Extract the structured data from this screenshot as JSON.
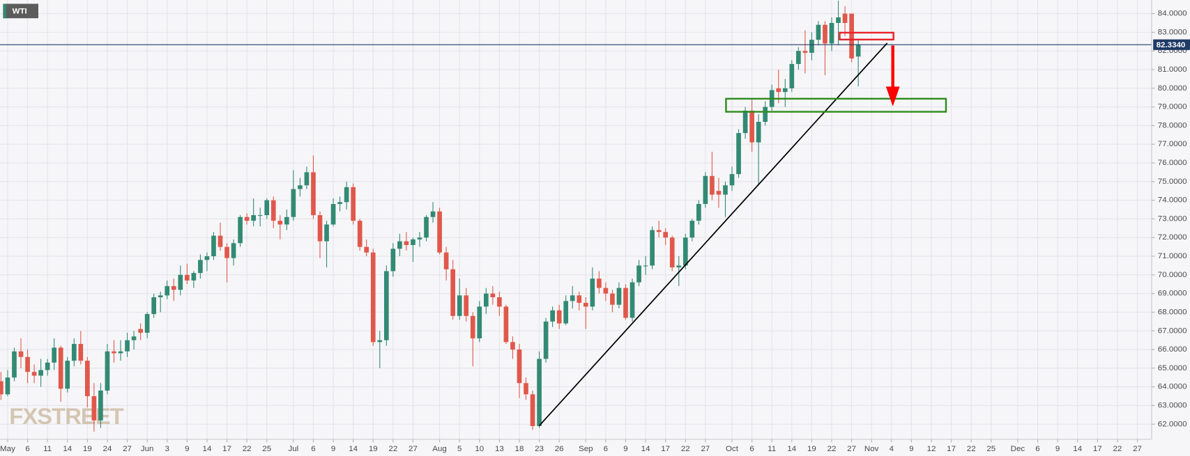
{
  "chart_data": {
    "type": "candlestick",
    "label": "WTI",
    "watermark": "FXSTREET",
    "colors": {
      "up": "#338a74",
      "down": "#e0584b"
    },
    "grid": true,
    "xlim": [
      -0.15,
      173.15
    ],
    "ylim": [
      61.19,
      84.73
    ],
    "yticks": [
      {
        "value": 62,
        "label": "62.0000"
      },
      {
        "value": 63,
        "label": "63.0000"
      },
      {
        "value": 64,
        "label": "64.0000"
      },
      {
        "value": 65,
        "label": "65.0000"
      },
      {
        "value": 66,
        "label": "66.0000"
      },
      {
        "value": 67,
        "label": "67.0000"
      },
      {
        "value": 68,
        "label": "68.0000"
      },
      {
        "value": 69,
        "label": "69.0000"
      },
      {
        "value": 70,
        "label": "70.0000"
      },
      {
        "value": 71,
        "label": "71.0000"
      },
      {
        "value": 72,
        "label": "72.0000"
      },
      {
        "value": 73,
        "label": "73.0000"
      },
      {
        "value": 74,
        "label": "74.0000"
      },
      {
        "value": 75,
        "label": "75.0000"
      },
      {
        "value": 76,
        "label": "76.0000"
      },
      {
        "value": 77,
        "label": "77.0000"
      },
      {
        "value": 78,
        "label": "78.0000"
      },
      {
        "value": 79,
        "label": "79.0000"
      },
      {
        "value": 80,
        "label": "80.0000"
      },
      {
        "value": 81,
        "label": "81.0000"
      },
      {
        "value": 82,
        "label": "82.0000"
      },
      {
        "value": 83,
        "label": "83.0000"
      },
      {
        "value": 84,
        "label": "84.0000"
      }
    ],
    "xticks": [
      {
        "value": 1,
        "label": "May"
      },
      {
        "value": 4,
        "label": "6"
      },
      {
        "value": 7,
        "label": "11"
      },
      {
        "value": 10,
        "label": "14"
      },
      {
        "value": 13,
        "label": "19"
      },
      {
        "value": 16,
        "label": "24"
      },
      {
        "value": 19,
        "label": "27"
      },
      {
        "value": 22,
        "label": "Jun"
      },
      {
        "value": 25,
        "label": "3"
      },
      {
        "value": 28,
        "label": "9"
      },
      {
        "value": 31,
        "label": "14"
      },
      {
        "value": 34,
        "label": "17"
      },
      {
        "value": 37,
        "label": "22"
      },
      {
        "value": 40,
        "label": "25"
      },
      {
        "value": 44,
        "label": "Jul"
      },
      {
        "value": 47,
        "label": "6"
      },
      {
        "value": 50,
        "label": "9"
      },
      {
        "value": 53,
        "label": "14"
      },
      {
        "value": 56,
        "label": "19"
      },
      {
        "value": 59,
        "label": "22"
      },
      {
        "value": 62,
        "label": "27"
      },
      {
        "value": 66,
        "label": "Aug"
      },
      {
        "value": 69,
        "label": "5"
      },
      {
        "value": 72,
        "label": "10"
      },
      {
        "value": 75,
        "label": "13"
      },
      {
        "value": 78,
        "label": "18"
      },
      {
        "value": 81,
        "label": "23"
      },
      {
        "value": 84,
        "label": "26"
      },
      {
        "value": 88,
        "label": "Sep"
      },
      {
        "value": 91,
        "label": "6"
      },
      {
        "value": 94,
        "label": "9"
      },
      {
        "value": 97,
        "label": "14"
      },
      {
        "value": 100,
        "label": "17"
      },
      {
        "value": 103,
        "label": "22"
      },
      {
        "value": 106,
        "label": "27"
      },
      {
        "value": 110,
        "label": "Oct"
      },
      {
        "value": 113,
        "label": "6"
      },
      {
        "value": 116,
        "label": "11"
      },
      {
        "value": 119,
        "label": "14"
      },
      {
        "value": 122,
        "label": "19"
      },
      {
        "value": 125,
        "label": "22"
      },
      {
        "value": 128,
        "label": "27"
      },
      {
        "value": 131,
        "label": "Nov"
      },
      {
        "value": 134,
        "label": "4"
      },
      {
        "value": 137,
        "label": "9"
      },
      {
        "value": 140,
        "label": "12"
      },
      {
        "value": 143,
        "label": "17"
      },
      {
        "value": 146,
        "label": "22"
      },
      {
        "value": 149,
        "label": "25"
      },
      {
        "value": 153,
        "label": "Dec"
      },
      {
        "value": 156,
        "label": "6"
      },
      {
        "value": 159,
        "label": "9"
      },
      {
        "value": 162,
        "label": "14"
      },
      {
        "value": 165,
        "label": "17"
      },
      {
        "value": 168,
        "label": "22"
      },
      {
        "value": 171,
        "label": "27"
      }
    ],
    "open": [
      64.3,
      63.6,
      64.5,
      65.9,
      65.6,
      64.8,
      64.6,
      64.9,
      65.3,
      66.1,
      63.9,
      65.4,
      66.3,
      65.4,
      63.5,
      62.2,
      63.8,
      65.9,
      65.8,
      65.9,
      66.5,
      67.1,
      66.9,
      67.9,
      68.8,
      68.9,
      69.4,
      69.2,
      70.0,
      69.7,
      70.1,
      70.8,
      71.0,
      72.1,
      71.5,
      70.9,
      71.7,
      73.1,
      72.9,
      73.2,
      73.2,
      74.0,
      72.9,
      72.7,
      73.1,
      74.6,
      74.8,
      75.5,
      73.2,
      71.8,
      72.7,
      73.8,
      73.9,
      74.7,
      72.9,
      71.5,
      71.2,
      66.4,
      66.5,
      70.2,
      71.4,
      71.8,
      71.6,
      71.9,
      72.0,
      73.1,
      73.4,
      71.2,
      70.3,
      67.8,
      68.9,
      67.8,
      66.6,
      68.3,
      69.0,
      68.8,
      68.3,
      66.4,
      66.0,
      64.2,
      63.6,
      61.9,
      65.5,
      67.5,
      68.1,
      67.4,
      68.6,
      68.9,
      68.5,
      68.3,
      69.8,
      69.3,
      69.0,
      68.4,
      69.3,
      67.7,
      69.6,
      70.5,
      70.5,
      72.4,
      72.3,
      72.0,
      70.4,
      70.5,
      72.0,
      72.9,
      73.8,
      75.3,
      74.5,
      74.3,
      74.8,
      75.4,
      77.6,
      78.8,
      77.1,
      78.2,
      79.0,
      80.0,
      79.8,
      80.0,
      81.3,
      82.0,
      81.9,
      82.6,
      83.4,
      82.4,
      83.5,
      84.0,
      84.0,
      81.7
    ],
    "high": [
      64.8,
      64.9,
      66.1,
      66.6,
      66.0,
      65.2,
      65.5,
      65.5,
      66.6,
      66.2,
      65.6,
      66.6,
      67.0,
      65.6,
      64.2,
      64.2,
      66.3,
      66.5,
      66.5,
      66.9,
      67.0,
      67.4,
      68.0,
      69.0,
      69.1,
      69.7,
      69.8,
      70.5,
      70.6,
      70.2,
      71.1,
      71.2,
      72.3,
      72.8,
      71.7,
      71.9,
      73.2,
      73.3,
      74.1,
      73.6,
      74.1,
      74.2,
      73.2,
      73.5,
      75.6,
      75.2,
      75.8,
      76.4,
      73.4,
      72.9,
      74.1,
      74.2,
      75.0,
      74.9,
      73.0,
      71.9,
      71.4,
      67.0,
      70.5,
      71.7,
      72.2,
      72.3,
      72.0,
      72.3,
      73.2,
      73.9,
      73.6,
      71.5,
      70.8,
      69.8,
      69.3,
      68.0,
      68.6,
      69.3,
      69.4,
      69.1,
      68.4,
      66.7,
      66.3,
      64.5,
      63.8,
      65.9,
      67.7,
      68.3,
      68.4,
      68.9,
      69.4,
      69.1,
      68.8,
      70.4,
      70.2,
      69.6,
      69.2,
      69.6,
      69.5,
      69.8,
      70.8,
      71.0,
      72.6,
      72.9,
      72.5,
      72.1,
      71.0,
      72.2,
      73.0,
      74.0,
      75.5,
      76.6,
      75.2,
      75.0,
      75.8,
      77.8,
      79.0,
      79.4,
      78.6,
      79.3,
      80.2,
      81.0,
      80.5,
      81.5,
      82.2,
      83.1,
      83.0,
      83.6,
      83.6,
      83.8,
      84.7,
      84.4,
      84.0,
      82.6
    ],
    "low": [
      63.3,
      63.5,
      64.3,
      65.0,
      64.2,
      64.2,
      64.0,
      64.6,
      64.9,
      63.2,
      63.7,
      65.1,
      65.2,
      62.9,
      61.6,
      61.8,
      63.6,
      65.3,
      65.4,
      65.6,
      66.0,
      66.5,
      66.6,
      67.7,
      68.0,
      68.7,
      68.6,
      68.9,
      69.5,
      69.3,
      69.8,
      70.2,
      70.8,
      71.3,
      69.6,
      70.5,
      71.5,
      72.7,
      72.6,
      72.6,
      73.0,
      72.5,
      71.9,
      72.4,
      72.9,
      74.2,
      74.6,
      73.0,
      70.9,
      70.4,
      72.6,
      73.4,
      73.5,
      72.7,
      71.3,
      71.0,
      66.2,
      65.0,
      66.2,
      69.9,
      71.0,
      71.3,
      70.7,
      71.5,
      71.8,
      72.8,
      71.1,
      69.7,
      67.6,
      67.6,
      67.5,
      65.1,
      66.4,
      67.9,
      68.4,
      67.8,
      66.3,
      65.5,
      63.4,
      63.3,
      61.7,
      61.8,
      65.3,
      67.2,
      67.1,
      67.3,
      68.2,
      68.1,
      67.1,
      68.1,
      69.0,
      68.6,
      68.0,
      68.2,
      67.6,
      67.5,
      69.4,
      70.0,
      70.3,
      72.0,
      71.6,
      70.2,
      69.4,
      70.3,
      71.8,
      72.7,
      73.6,
      74.0,
      73.6,
      73.1,
      74.5,
      75.2,
      77.3,
      76.6,
      74.8,
      78.0,
      78.8,
      79.2,
      79.0,
      79.8,
      81.0,
      80.8,
      81.5,
      82.3,
      80.7,
      82.0,
      82.3,
      82.8,
      81.4,
      80.1
    ],
    "close": [
      63.6,
      64.5,
      65.9,
      65.6,
      64.8,
      64.6,
      64.9,
      65.3,
      66.1,
      63.9,
      65.4,
      66.3,
      65.4,
      63.5,
      62.2,
      63.8,
      65.9,
      65.8,
      65.9,
      66.5,
      66.7,
      66.9,
      67.9,
      68.8,
      68.9,
      69.4,
      69.2,
      70.0,
      69.7,
      70.1,
      70.8,
      71.0,
      72.1,
      71.5,
      70.9,
      71.7,
      73.1,
      72.9,
      73.2,
      73.2,
      74.0,
      72.9,
      72.7,
      73.1,
      74.6,
      74.8,
      75.5,
      73.2,
      71.8,
      72.7,
      73.8,
      73.9,
      74.7,
      72.9,
      71.5,
      71.2,
      66.4,
      66.5,
      70.2,
      71.4,
      71.8,
      71.6,
      71.9,
      72.0,
      73.1,
      73.4,
      71.2,
      70.3,
      67.8,
      68.9,
      67.8,
      66.6,
      68.3,
      69.0,
      68.8,
      68.3,
      66.4,
      66.0,
      64.2,
      63.6,
      61.9,
      65.5,
      67.5,
      68.1,
      67.4,
      68.6,
      68.9,
      68.5,
      68.3,
      69.8,
      69.3,
      69.0,
      68.4,
      69.3,
      67.7,
      69.6,
      70.5,
      70.5,
      72.4,
      72.3,
      72.0,
      70.4,
      70.5,
      72.0,
      72.9,
      73.8,
      75.3,
      74.3,
      74.3,
      74.8,
      75.4,
      77.6,
      78.8,
      77.1,
      78.2,
      79.0,
      79.9,
      79.8,
      80.0,
      81.3,
      82.0,
      81.9,
      82.6,
      83.4,
      82.4,
      83.5,
      83.8,
      83.5,
      81.6,
      82.334
    ],
    "last_price": {
      "value": 82.334,
      "label": "82.3340",
      "color": "#1f3a66"
    },
    "trendline": {
      "x": [
        81,
        133.35
      ],
      "y": [
        61.92,
        82.42
      ],
      "color": "#000000"
    },
    "support_zone": {
      "x": [
        109.1,
        142.2
      ],
      "y": [
        78.74,
        79.44
      ],
      "color": "#2e8b1e"
    },
    "resistance_zone": {
      "x": [
        126.2,
        134.3
      ],
      "y": [
        82.61,
        82.98
      ],
      "color": "#e8212a"
    },
    "arrow": {
      "x": 134.2,
      "y": [
        82.29,
        79.03
      ],
      "color": "#ff0000"
    }
  }
}
